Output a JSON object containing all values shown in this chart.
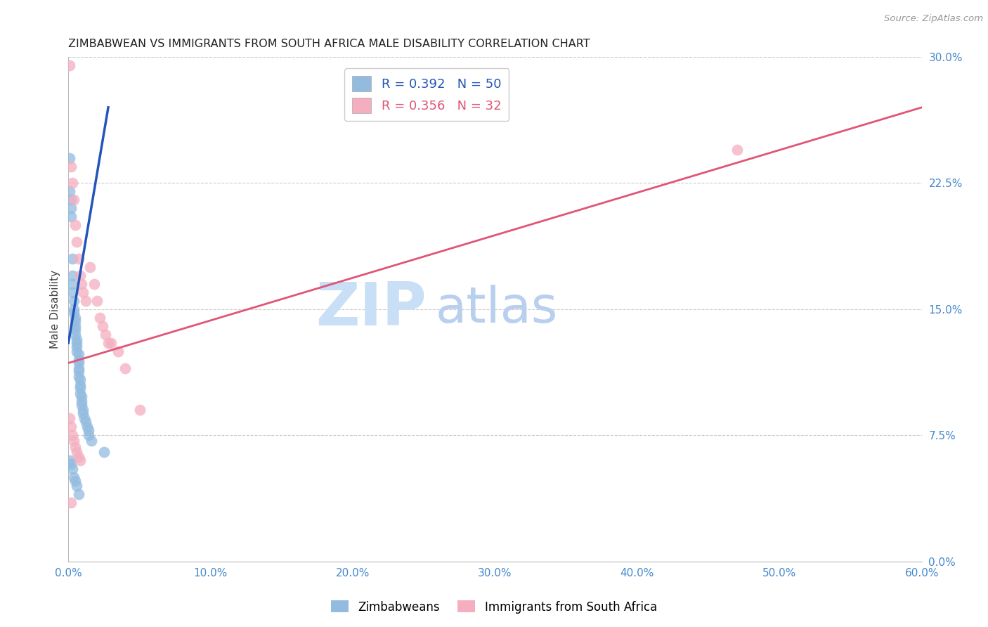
{
  "title": "ZIMBABWEAN VS IMMIGRANTS FROM SOUTH AFRICA MALE DISABILITY CORRELATION CHART",
  "source": "Source: ZipAtlas.com",
  "ylabel": "Male Disability",
  "xlabel_ticks": [
    "0.0%",
    "10.0%",
    "20.0%",
    "30.0%",
    "40.0%",
    "50.0%",
    "60.0%"
  ],
  "xlabel_vals": [
    0.0,
    0.1,
    0.2,
    0.3,
    0.4,
    0.5,
    0.6
  ],
  "ytick_labels": [
    "0.0%",
    "7.5%",
    "15.0%",
    "22.5%",
    "30.0%"
  ],
  "ytick_vals": [
    0.0,
    0.075,
    0.15,
    0.225,
    0.3
  ],
  "xlim": [
    0.0,
    0.6
  ],
  "ylim": [
    0.0,
    0.3
  ],
  "R_blue": 0.392,
  "N_blue": 50,
  "R_pink": 0.356,
  "N_pink": 32,
  "legend_label_blue": "Zimbabweans",
  "legend_label_pink": "Immigrants from South Africa",
  "color_blue": "#92bbdf",
  "color_pink": "#f4aec0",
  "line_color_blue": "#2255bb",
  "line_color_pink": "#e05575",
  "watermark_zip": "ZIP",
  "watermark_atlas": "atlas",
  "watermark_color_zip": "#c8dff5",
  "watermark_color_atlas": "#b8d0ee",
  "blue_line_x": [
    0.0,
    0.028
  ],
  "blue_line_y": [
    0.13,
    0.27
  ],
  "pink_line_x": [
    0.0,
    0.6
  ],
  "pink_line_y": [
    0.118,
    0.27
  ],
  "blue_x": [
    0.001,
    0.001,
    0.002,
    0.002,
    0.002,
    0.003,
    0.003,
    0.003,
    0.003,
    0.004,
    0.004,
    0.004,
    0.005,
    0.005,
    0.005,
    0.005,
    0.005,
    0.006,
    0.006,
    0.006,
    0.006,
    0.007,
    0.007,
    0.007,
    0.007,
    0.007,
    0.007,
    0.008,
    0.008,
    0.008,
    0.008,
    0.009,
    0.009,
    0.009,
    0.01,
    0.01,
    0.011,
    0.012,
    0.013,
    0.014,
    0.014,
    0.016,
    0.025,
    0.001,
    0.002,
    0.003,
    0.004,
    0.005,
    0.006,
    0.007
  ],
  "blue_y": [
    0.24,
    0.22,
    0.215,
    0.21,
    0.205,
    0.18,
    0.17,
    0.165,
    0.16,
    0.155,
    0.15,
    0.148,
    0.145,
    0.143,
    0.14,
    0.138,
    0.135,
    0.132,
    0.13,
    0.128,
    0.125,
    0.123,
    0.12,
    0.118,
    0.115,
    0.113,
    0.11,
    0.108,
    0.105,
    0.103,
    0.1,
    0.098,
    0.095,
    0.093,
    0.09,
    0.088,
    0.085,
    0.083,
    0.08,
    0.078,
    0.075,
    0.072,
    0.065,
    0.06,
    0.058,
    0.055,
    0.05,
    0.048,
    0.045,
    0.04
  ],
  "pink_x": [
    0.001,
    0.002,
    0.003,
    0.004,
    0.005,
    0.006,
    0.007,
    0.008,
    0.009,
    0.01,
    0.012,
    0.015,
    0.018,
    0.02,
    0.022,
    0.024,
    0.026,
    0.028,
    0.03,
    0.035,
    0.04,
    0.05,
    0.001,
    0.002,
    0.003,
    0.004,
    0.005,
    0.006,
    0.007,
    0.008,
    0.002,
    0.47
  ],
  "pink_y": [
    0.295,
    0.235,
    0.225,
    0.215,
    0.2,
    0.19,
    0.18,
    0.17,
    0.165,
    0.16,
    0.155,
    0.175,
    0.165,
    0.155,
    0.145,
    0.14,
    0.135,
    0.13,
    0.13,
    0.125,
    0.115,
    0.09,
    0.085,
    0.08,
    0.075,
    0.072,
    0.068,
    0.065,
    0.062,
    0.06,
    0.035,
    0.245
  ]
}
